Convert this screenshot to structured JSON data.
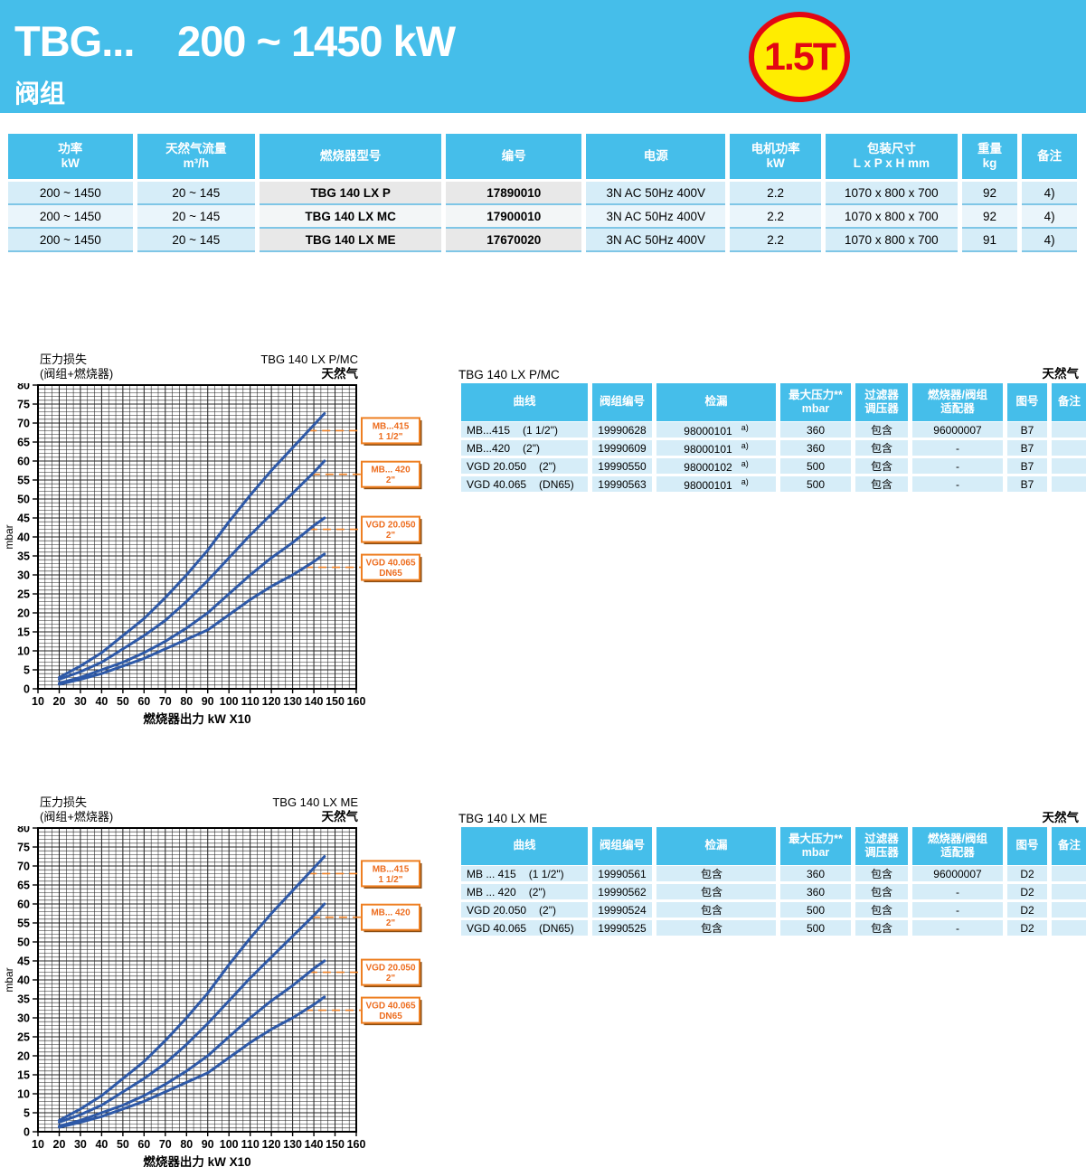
{
  "header": {
    "model": "TBG...",
    "power_range": "200 ~ 1450 kW",
    "subtitle": "阀组",
    "badge": "1.5T",
    "band_color": "#45beea",
    "badge_bg": "#ffed00",
    "badge_red": "#e30613"
  },
  "spec_table": {
    "headers": [
      "功率\nkW",
      "天然气流量\nm³/h",
      "燃烧器型号",
      "编号",
      "电源",
      "电机功率\nkW",
      "包装尺寸\nL x P x H  mm",
      "重量\nkg",
      "备注"
    ],
    "rows": [
      [
        "200 ~ 1450",
        "20 ~ 145",
        "TBG 140 LX P",
        "17890010",
        "3N AC 50Hz 400V",
        "2.2",
        "1070 x 800 x 700",
        "92",
        "4)"
      ],
      [
        "200 ~ 1450",
        "20 ~ 145",
        "TBG 140 LX MC",
        "17900010",
        "3N AC 50Hz 400V",
        "2.2",
        "1070 x 800 x 700",
        "92",
        "4)"
      ],
      [
        "200 ~ 1450",
        "20 ~ 145",
        "TBG 140 LX ME",
        "17670020",
        "3N AC 50Hz 400V",
        "2.2",
        "1070 x 800 x 700",
        "91",
        "4)"
      ]
    ]
  },
  "charts": [
    {
      "pressure_label": "压力损失",
      "pressure_sub": "(阀组+燃烧器)",
      "title": "TBG 140 LX P/MC",
      "gas": "天然气"
    },
    {
      "pressure_label": "压力损失",
      "pressure_sub": "(阀组+燃烧器)",
      "title": "TBG 140 LX ME",
      "gas": "天然气"
    }
  ],
  "chart_data": {
    "type": "line",
    "title": "压力损失 (阀组+燃烧器)",
    "xlabel": "燃烧器出力 kW X10",
    "ylabel": "mbar",
    "xlim": [
      10,
      160
    ],
    "ylim": [
      0,
      80
    ],
    "x_major": 10,
    "y_major": 5,
    "grid": true,
    "legend_position": "right",
    "curve_color": "#2e59a7",
    "label_color": "#ee7f22",
    "x": [
      20,
      30,
      40,
      50,
      60,
      70,
      80,
      90,
      100,
      110,
      120,
      130,
      140,
      145
    ],
    "series": [
      {
        "name": "MB...415",
        "size": "1 1/2\"",
        "label_y": 68,
        "y": [
          3,
          6,
          9.5,
          14,
          18.5,
          24,
          30,
          36.5,
          44,
          51,
          57.5,
          63.5,
          69.5,
          72.5
        ]
      },
      {
        "name": "MB... 420",
        "size": "2\"",
        "label_y": 56.5,
        "y": [
          2.5,
          4.5,
          7,
          10.5,
          14,
          18,
          23,
          28.5,
          34.5,
          40.5,
          46,
          51.5,
          57,
          60
        ]
      },
      {
        "name": "VGD 20.050",
        "size": "2\"",
        "label_y": 42,
        "y": [
          1.5,
          3,
          5,
          7,
          9.5,
          12.5,
          16,
          20,
          25,
          30,
          34.5,
          38.5,
          43,
          45
        ]
      },
      {
        "name": "VGD 40.065",
        "size": "DN65",
        "label_y": 32,
        "y": [
          1.2,
          2.5,
          4,
          6,
          8,
          10.5,
          13,
          15.5,
          19.5,
          23.5,
          27,
          30,
          33.5,
          35.5
        ]
      }
    ]
  },
  "valve_tables": [
    {
      "title": "TBG 140 LX P/MC",
      "gas": "天然气",
      "headers": [
        "曲线",
        "阀组编号",
        "检漏",
        "最大压力**\nmbar",
        "过滤器\n调压器",
        "燃烧器/阀组\n适配器",
        "图号",
        "备注"
      ],
      "rows": [
        {
          "curve": "MB...415",
          "size": "(1 1/2\")",
          "valve_no": "19990628",
          "leak": "98000101",
          "leak_sup": "a)",
          "max_p": "360",
          "filter": "包含",
          "adapter": "96000007",
          "fig": "B7",
          "note": ""
        },
        {
          "curve": "MB...420",
          "size": "(2\")",
          "valve_no": "19990609",
          "leak": "98000101",
          "leak_sup": "a)",
          "max_p": "360",
          "filter": "包含",
          "adapter": "-",
          "fig": "B7",
          "note": ""
        },
        {
          "curve": "VGD 20.050",
          "size": "(2\")",
          "valve_no": "19990550",
          "leak": "98000102",
          "leak_sup": "a)",
          "max_p": "500",
          "filter": "包含",
          "adapter": "-",
          "fig": "B7",
          "note": ""
        },
        {
          "curve": "VGD 40.065",
          "size": "(DN65)",
          "valve_no": "19990563",
          "leak": "98000101",
          "leak_sup": "a)",
          "max_p": "500",
          "filter": "包含",
          "adapter": "-",
          "fig": "B7",
          "note": ""
        }
      ]
    },
    {
      "title": "TBG 140 LX ME",
      "gas": "天然气",
      "headers": [
        "曲线",
        "阀组编号",
        "检漏",
        "最大压力**\nmbar",
        "过滤器\n调压器",
        "燃烧器/阀组\n适配器",
        "图号",
        "备注"
      ],
      "rows": [
        {
          "curve": "MB ... 415",
          "size": "(1 1/2\")",
          "valve_no": "19990561",
          "leak": "包含",
          "leak_sup": "",
          "max_p": "360",
          "filter": "包含",
          "adapter": "96000007",
          "fig": "D2",
          "note": ""
        },
        {
          "curve": "MB ... 420",
          "size": "(2\")",
          "valve_no": "19990562",
          "leak": "包含",
          "leak_sup": "",
          "max_p": "360",
          "filter": "包含",
          "adapter": "-",
          "fig": "D2",
          "note": ""
        },
        {
          "curve": "VGD 20.050",
          "size": "(2\")",
          "valve_no": "19990524",
          "leak": "包含",
          "leak_sup": "",
          "max_p": "500",
          "filter": "包含",
          "adapter": "-",
          "fig": "D2",
          "note": ""
        },
        {
          "curve": "VGD 40.065",
          "size": "(DN65)",
          "valve_no": "19990525",
          "leak": "包含",
          "leak_sup": "",
          "max_p": "500",
          "filter": "包含",
          "adapter": "-",
          "fig": "D2",
          "note": ""
        }
      ]
    }
  ]
}
